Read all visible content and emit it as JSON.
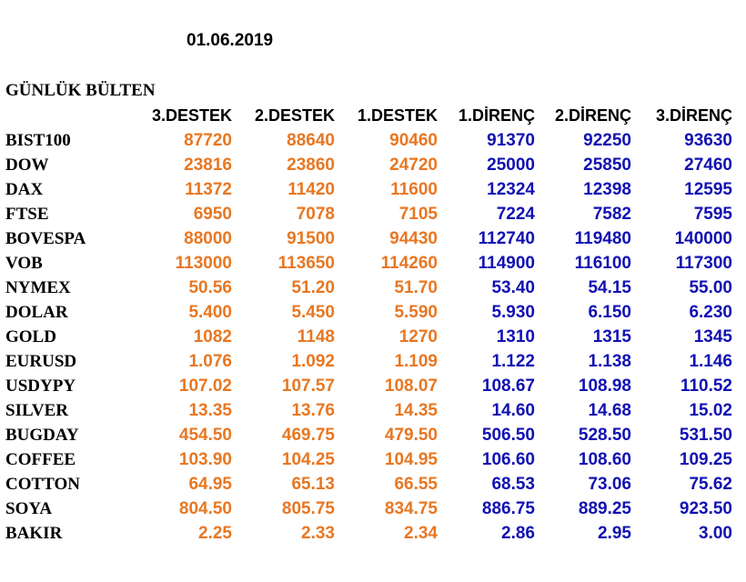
{
  "date": "01.06.2019",
  "title": "GÜNLÜK BÜLTEN",
  "colors": {
    "support": "#E87722",
    "resistance": "#1111B3"
  },
  "columns": [
    "3.DESTEK",
    "2.DESTEK",
    "1.DESTEK",
    "1.DİRENÇ",
    "2.DİRENÇ",
    "3.DİRENÇ"
  ],
  "rows": [
    {
      "name": "BIST100",
      "values": [
        "87720",
        "88640",
        "90460",
        "91370",
        "92250",
        "93630"
      ]
    },
    {
      "name": "DOW",
      "values": [
        "23816",
        "23860",
        "24720",
        "25000",
        "25850",
        "27460"
      ]
    },
    {
      "name": "DAX",
      "values": [
        "11372",
        "11420",
        "11600",
        "12324",
        "12398",
        "12595"
      ]
    },
    {
      "name": "FTSE",
      "values": [
        "6950",
        "7078",
        "7105",
        "7224",
        "7582",
        "7595"
      ]
    },
    {
      "name": "BOVESPA",
      "values": [
        "88000",
        "91500",
        "94430",
        "112740",
        "119480",
        "140000"
      ]
    },
    {
      "name": "VOB",
      "values": [
        "113000",
        "113650",
        "114260",
        "114900",
        "116100",
        "117300"
      ]
    },
    {
      "name": "NYMEX",
      "values": [
        "50.56",
        "51.20",
        "51.70",
        "53.40",
        "54.15",
        "55.00"
      ]
    },
    {
      "name": "DOLAR",
      "values": [
        "5.400",
        "5.450",
        "5.590",
        "5.930",
        "6.150",
        "6.230"
      ]
    },
    {
      "name": "GOLD",
      "values": [
        "1082",
        "1148",
        "1270",
        "1310",
        "1315",
        "1345"
      ]
    },
    {
      "name": "EURUSD",
      "values": [
        "1.076",
        "1.092",
        "1.109",
        "1.122",
        "1.138",
        "1.146"
      ]
    },
    {
      "name": "USDYPY",
      "values": [
        "107.02",
        "107.57",
        "108.07",
        "108.67",
        "108.98",
        "110.52"
      ]
    },
    {
      "name": "SILVER",
      "values": [
        "13.35",
        "13.76",
        "14.35",
        "14.60",
        "14.68",
        "15.02"
      ]
    },
    {
      "name": "BUGDAY",
      "values": [
        "454.50",
        "469.75",
        "479.50",
        "506.50",
        "528.50",
        "531.50"
      ]
    },
    {
      "name": "COFFEE",
      "values": [
        "103.90",
        "104.25",
        "104.95",
        "106.60",
        "108.60",
        "109.25"
      ]
    },
    {
      "name": "COTTON",
      "values": [
        "64.95",
        "65.13",
        "66.55",
        "68.53",
        "73.06",
        "75.62"
      ]
    },
    {
      "name": "SOYA",
      "values": [
        "804.50",
        "805.75",
        "834.75",
        "886.75",
        "889.25",
        "923.50"
      ]
    },
    {
      "name": "BAKIR",
      "values": [
        "2.25",
        "2.33",
        "2.34",
        "2.86",
        "2.95",
        "3.00"
      ]
    }
  ]
}
